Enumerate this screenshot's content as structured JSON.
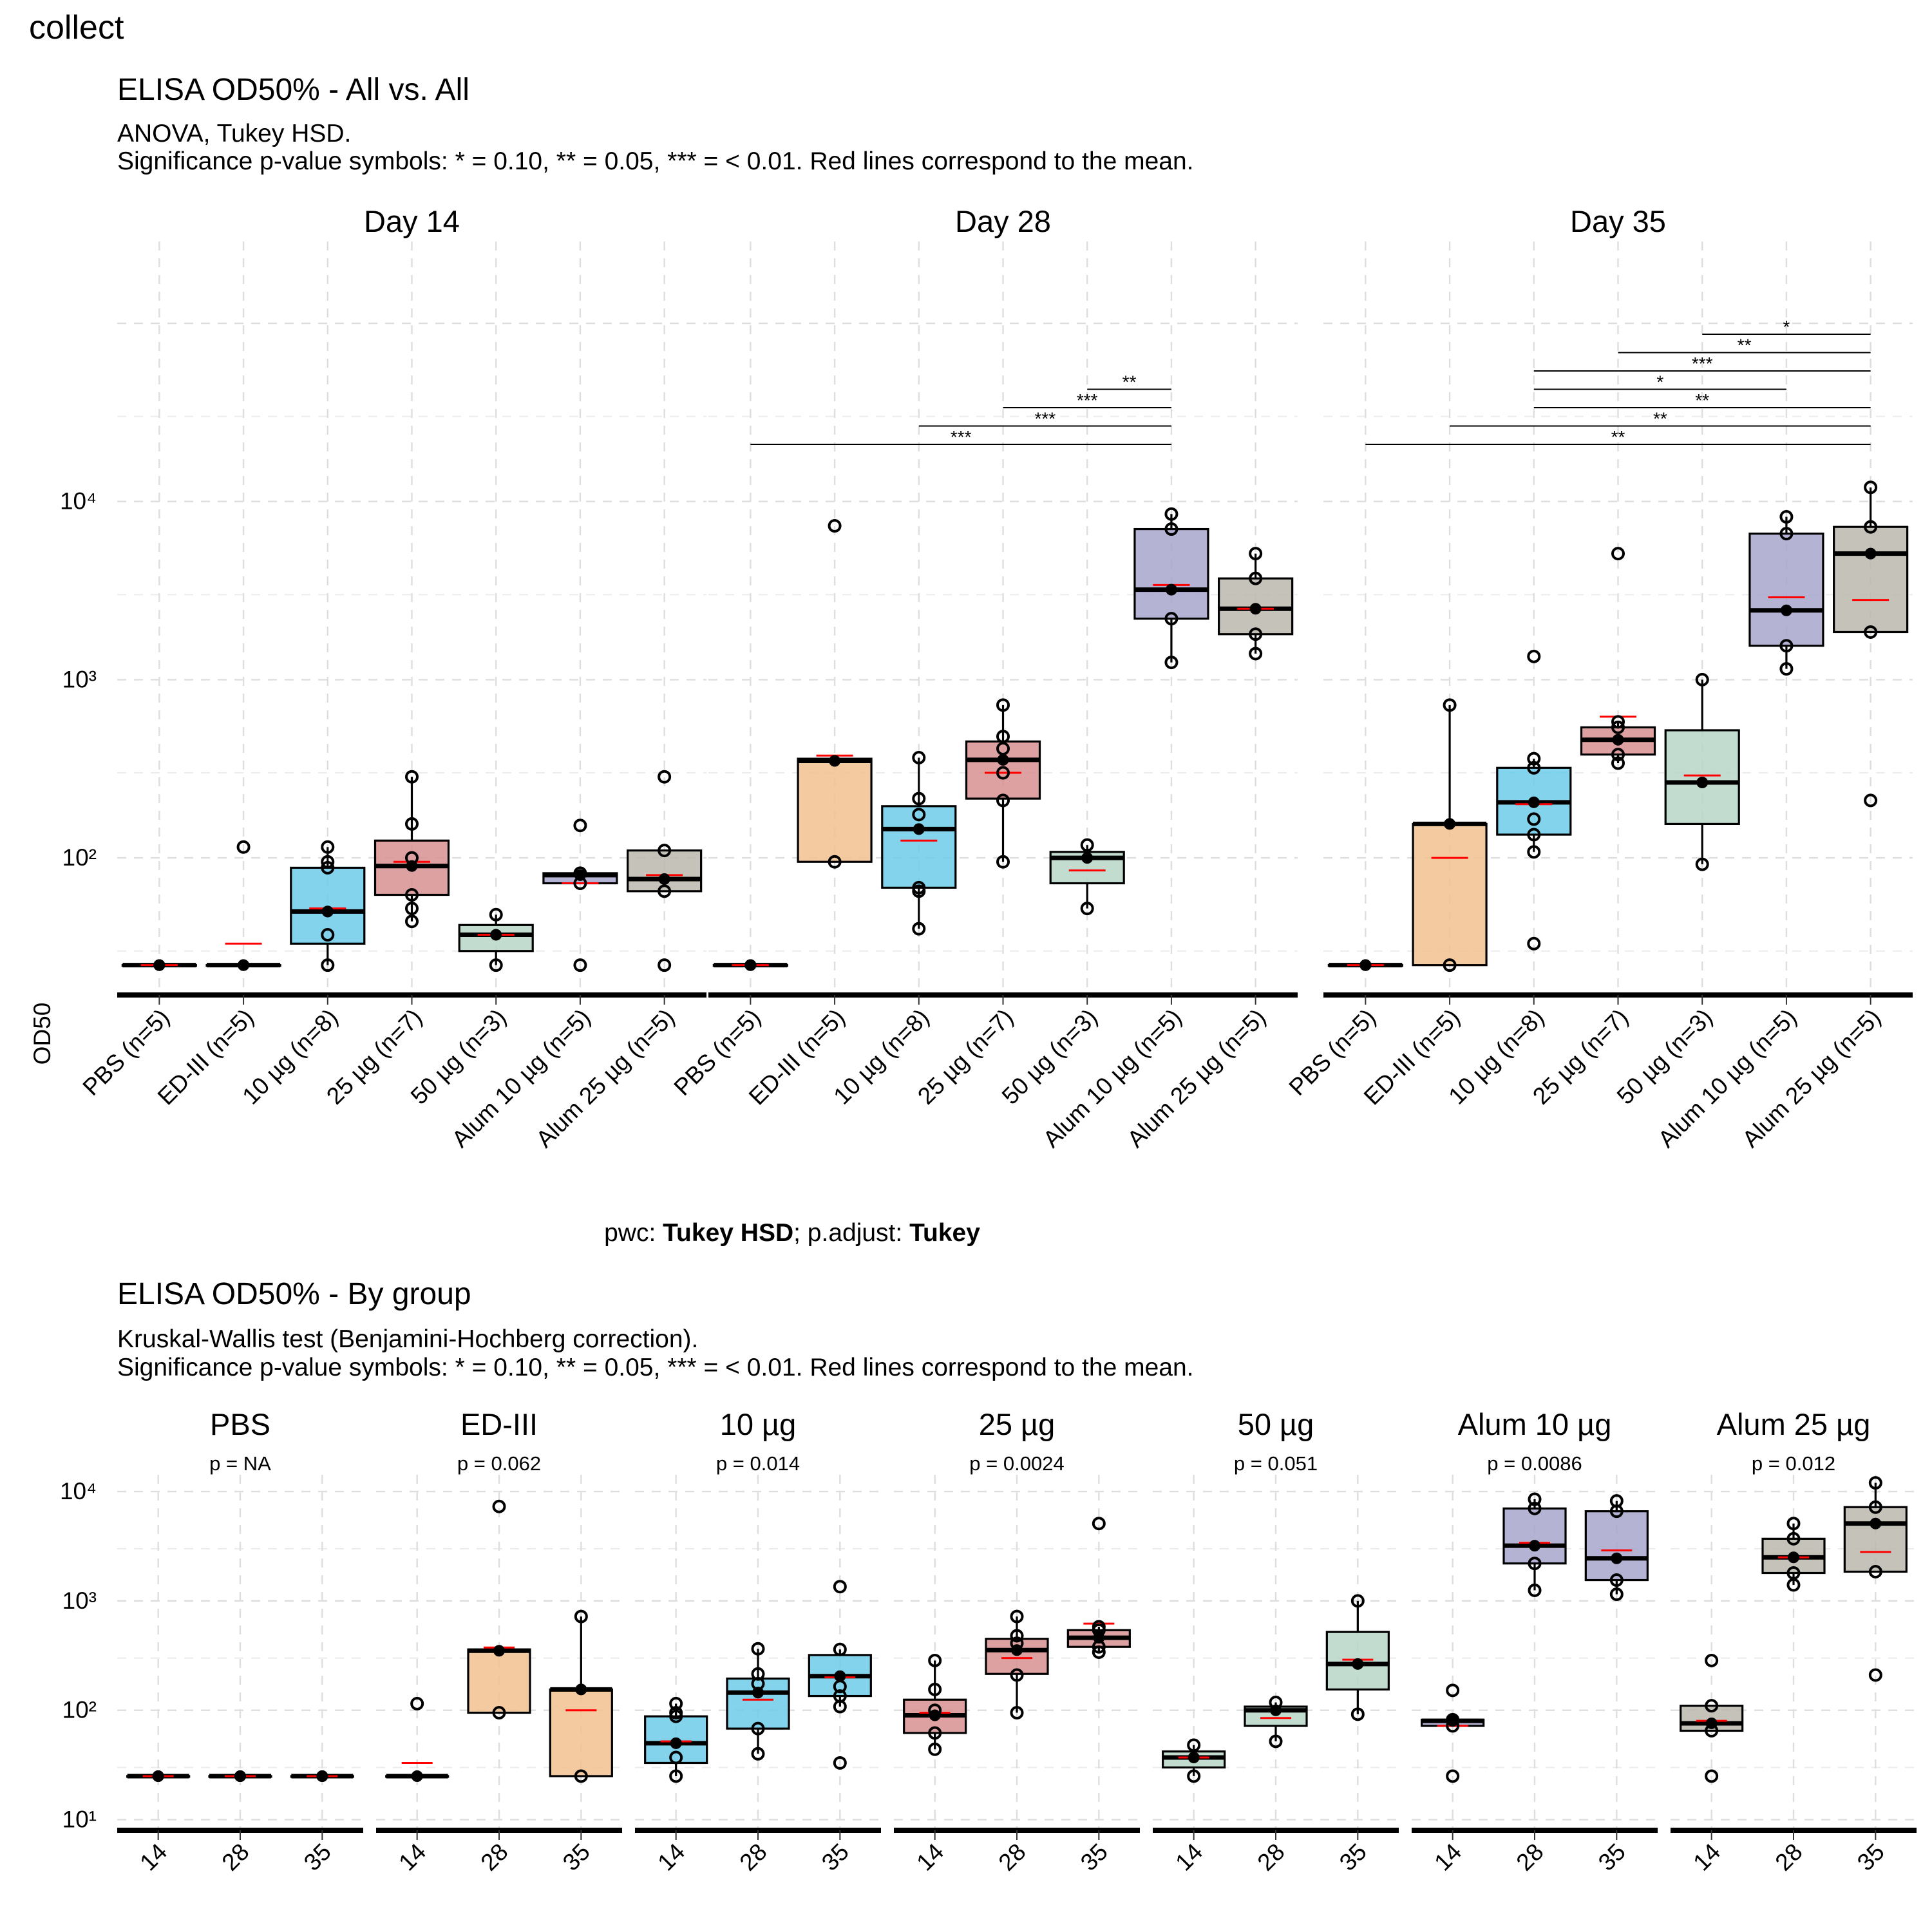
{
  "page_title": "collect",
  "colors": {
    "PBS": "#f8766d",
    "ED-III": "#f2c28f",
    "10 µg": "#6ccbe8",
    "25 µg": "#d89090",
    "50 µg": "#b8d6c8",
    "Alum 10 µg": "#a8a6cc",
    "Alum 25 µg": "#bab7ad"
  },
  "top": {
    "title": "ELISA OD50% - All vs. All",
    "subtitle1": "ANOVA, Tukey HSD.",
    "subtitle2": "Significance p-value symbols: * = 0.10, ** = 0.05, *** = < 0.01. Red lines correspond to the mean.",
    "ylabel": "OD50",
    "caption_pre": "pwc: ",
    "caption_b1": "Tukey HSD",
    "caption_mid": "; p.adjust: ",
    "caption_b2": "Tukey"
  },
  "bottom": {
    "title": "ELISA OD50% - By group",
    "subtitle1": "Kruskal-Wallis test (Benjamini-Hochberg correction).",
    "subtitle2": "Significance p-value symbols: * = 0.10, ** = 0.05, *** = < 0.01. Red lines correspond to the mean."
  },
  "chart_data": [
    {
      "type": "box",
      "title": "ELISA OD50% - All vs. All",
      "subtitle": "ANOVA, Tukey HSD. Significance p-value symbols: * = 0.10, ** = 0.05, *** = < 0.01. Red lines correspond to the mean.",
      "ylabel": "OD50",
      "yscale": "log10",
      "ylim": [
        17,
        300000
      ],
      "yticks": [
        100,
        1000,
        10000
      ],
      "ytick_labels": [
        "10²",
        "10³",
        "10⁴"
      ],
      "caption": "pwc: Tukey HSD; p.adjust: Tukey",
      "categories": [
        "PBS (n=5)",
        "ED-III (n=5)",
        "10 µg (n=8)",
        "25 µg (n=7)",
        "50 µg (n=3)",
        "Alum 10 µg (n=5)",
        "Alum 25 µg (n=5)"
      ],
      "groups": [
        "PBS",
        "ED-III",
        "10 µg",
        "25 µg",
        "50 µg",
        "Alum 10 µg",
        "Alum 25 µg"
      ],
      "panels": [
        {
          "strip": "Day  14",
          "boxes": [
            {
              "q1": 25,
              "med": 25,
              "q3": 25,
              "lo": 25,
              "hi": 25,
              "mean": 25,
              "points": [
                25,
                25,
                25,
                25,
                25
              ]
            },
            {
              "q1": 25,
              "med": 25,
              "q3": 25,
              "lo": 25,
              "hi": 25,
              "mean": 33,
              "points": [
                25,
                25,
                25,
                25,
                115
              ],
              "outliers": [
                115
              ]
            },
            {
              "q1": 33,
              "med": 50,
              "q3": 88,
              "lo": 25,
              "hi": 115,
              "mean": 52,
              "points": [
                25,
                37,
                50,
                50,
                88,
                95,
                115
              ]
            },
            {
              "q1": 62,
              "med": 90,
              "q3": 125,
              "lo": 44,
              "hi": 285,
              "mean": 95,
              "points": [
                44,
                52,
                62,
                90,
                100,
                155,
                285
              ]
            },
            {
              "q1": 30,
              "med": 37,
              "q3": 42,
              "lo": 25,
              "hi": 48,
              "mean": 37,
              "points": [
                25,
                37,
                48
              ]
            },
            {
              "q1": 72,
              "med": 80,
              "q3": 82,
              "lo": 72,
              "hi": 82,
              "mean": 72,
              "points": [
                25,
                72,
                80,
                82,
                152
              ],
              "outliers": [
                25,
                152
              ]
            },
            {
              "q1": 65,
              "med": 76,
              "q3": 110,
              "lo": 65,
              "hi": 110,
              "mean": 80,
              "points": [
                25,
                65,
                76,
                110,
                285
              ],
              "outliers": [
                25,
                285
              ]
            }
          ],
          "brackets": []
        },
        {
          "strip": "Day  28",
          "boxes": [
            {
              "q1": 25,
              "med": 25,
              "q3": 25,
              "lo": 25,
              "hi": 25,
              "mean": 25,
              "points": [
                25,
                25,
                25,
                25,
                25
              ]
            },
            {
              "q1": 95,
              "med": 350,
              "q3": 360,
              "lo": 95,
              "hi": 360,
              "mean": 375,
              "points": [
                95,
                350,
                7300
              ],
              "outliers": [
                7300
              ]
            },
            {
              "q1": 68,
              "med": 145,
              "q3": 195,
              "lo": 40,
              "hi": 365,
              "mean": 125,
              "points": [
                40,
                65,
                68,
                145,
                175,
                215,
                365
              ]
            },
            {
              "q1": 215,
              "med": 355,
              "q3": 450,
              "lo": 95,
              "hi": 720,
              "mean": 300,
              "points": [
                95,
                210,
                300,
                355,
                410,
                480,
                720
              ]
            },
            {
              "q1": 72,
              "med": 100,
              "q3": 108,
              "lo": 52,
              "hi": 118,
              "mean": 85,
              "points": [
                52,
                100,
                118
              ]
            },
            {
              "q1": 2200,
              "med": 3200,
              "q3": 7000,
              "lo": 1250,
              "hi": 8500,
              "mean": 3400,
              "points": [
                1250,
                2200,
                3200,
                7000,
                8500
              ]
            },
            {
              "q1": 1800,
              "med": 2500,
              "q3": 3700,
              "lo": 1400,
              "hi": 5100,
              "mean": 2500,
              "points": [
                1400,
                1800,
                2500,
                3700,
                5100
              ]
            }
          ],
          "brackets": [
            {
              "from": 0,
              "to": 5,
              "label": "***"
            },
            {
              "from": 2,
              "to": 5,
              "label": "***"
            },
            {
              "from": 3,
              "to": 5,
              "label": "***"
            },
            {
              "from": 4,
              "to": 5,
              "label": "**"
            }
          ]
        },
        {
          "strip": "Day  35",
          "boxes": [
            {
              "q1": 25,
              "med": 25,
              "q3": 25,
              "lo": 25,
              "hi": 25,
              "mean": 25,
              "points": [
                25,
                25,
                25,
                25,
                25
              ]
            },
            {
              "q1": 25,
              "med": 155,
              "q3": 155,
              "lo": 25,
              "hi": 720,
              "mean": 100,
              "points": [
                25,
                155,
                720
              ]
            },
            {
              "q1": 135,
              "med": 205,
              "q3": 320,
              "lo": 108,
              "hi": 360,
              "mean": 200,
              "points": [
                33,
                108,
                135,
                165,
                205,
                320,
                360,
                1350
              ],
              "outliers": [
                33,
                1350
              ]
            },
            {
              "q1": 380,
              "med": 460,
              "q3": 540,
              "lo": 340,
              "hi": 580,
              "mean": 620,
              "points": [
                340,
                380,
                460,
                540,
                580,
                5100
              ],
              "outliers": [
                5100
              ]
            },
            {
              "q1": 155,
              "med": 265,
              "q3": 520,
              "lo": 92,
              "hi": 1000,
              "mean": 290,
              "points": [
                92,
                265,
                1000
              ]
            },
            {
              "q1": 1550,
              "med": 2450,
              "q3": 6600,
              "lo": 1150,
              "hi": 8200,
              "mean": 2900,
              "points": [
                1150,
                1550,
                2450,
                6600,
                8200
              ]
            },
            {
              "q1": 1850,
              "med": 5100,
              "q3": 7200,
              "lo": 1850,
              "hi": 12000,
              "mean": 2800,
              "points": [
                210,
                1850,
                5100,
                7200,
                12000
              ],
              "outliers": [
                210
              ]
            }
          ],
          "brackets": [
            {
              "from": 0,
              "to": 6,
              "label": "**"
            },
            {
              "from": 1,
              "to": 6,
              "label": "**"
            },
            {
              "from": 2,
              "to": 6,
              "label": "**"
            },
            {
              "from": 2,
              "to": 5,
              "label": "*"
            },
            {
              "from": 2,
              "to": 6,
              "label": "***"
            },
            {
              "from": 3,
              "to": 6,
              "label": "**"
            },
            {
              "from": 4,
              "to": 6,
              "label": "*"
            }
          ]
        }
      ]
    },
    {
      "type": "box",
      "title": "ELISA OD50% - By group",
      "subtitle": "Kruskal-Wallis test (Benjamini-Hochberg correction). Significance p-value symbols: * = 0.10, ** = 0.05, *** = < 0.01. Red lines correspond to the mean.",
      "yscale": "log10",
      "ylim": [
        8,
        30000
      ],
      "yticks": [
        10,
        100,
        1000,
        10000
      ],
      "ytick_labels": [
        "10¹",
        "10²",
        "10³",
        "10⁴"
      ],
      "categories": [
        "14",
        "28",
        "35"
      ],
      "panels": [
        {
          "strip": "PBS",
          "p": "p = NA",
          "group": "PBS",
          "boxes": [
            {
              "q1": 25,
              "med": 25,
              "q3": 25,
              "lo": 25,
              "hi": 25,
              "mean": 25,
              "points": [
                25,
                25,
                25
              ]
            },
            {
              "q1": 25,
              "med": 25,
              "q3": 25,
              "lo": 25,
              "hi": 25,
              "mean": 25,
              "points": [
                25,
                25,
                25
              ]
            },
            {
              "q1": 25,
              "med": 25,
              "q3": 25,
              "lo": 25,
              "hi": 25,
              "mean": 25,
              "points": [
                25,
                25,
                25
              ]
            }
          ]
        },
        {
          "strip": "ED-III",
          "p": "p = 0.062",
          "group": "ED-III",
          "boxes": [
            {
              "q1": 25,
              "med": 25,
              "q3": 25,
              "lo": 25,
              "hi": 25,
              "mean": 33,
              "points": [
                25,
                115
              ],
              "outliers": [
                115
              ]
            },
            {
              "q1": 95,
              "med": 350,
              "q3": 360,
              "lo": 95,
              "hi": 360,
              "mean": 375,
              "points": [
                95,
                350,
                7300
              ],
              "outliers": [
                7300
              ]
            },
            {
              "q1": 25,
              "med": 155,
              "q3": 155,
              "lo": 25,
              "hi": 720,
              "mean": 100,
              "points": [
                25,
                155,
                720
              ]
            }
          ]
        },
        {
          "strip": "10 µg",
          "p": "p = 0.014",
          "group": "10 µg",
          "boxes": [
            {
              "q1": 33,
              "med": 50,
              "q3": 88,
              "lo": 25,
              "hi": 115,
              "mean": 52,
              "points": [
                25,
                37,
                50,
                88,
                95,
                115
              ]
            },
            {
              "q1": 68,
              "med": 145,
              "q3": 195,
              "lo": 40,
              "hi": 365,
              "mean": 125,
              "points": [
                40,
                68,
                145,
                175,
                215,
                365
              ]
            },
            {
              "q1": 135,
              "med": 205,
              "q3": 320,
              "lo": 108,
              "hi": 360,
              "mean": 200,
              "points": [
                33,
                108,
                135,
                165,
                205,
                360,
                1350
              ],
              "outliers": [
                33,
                1350
              ]
            }
          ]
        },
        {
          "strip": "25 µg",
          "p": "p = 0.0024",
          "group": "25 µg",
          "boxes": [
            {
              "q1": 62,
              "med": 90,
              "q3": 125,
              "lo": 44,
              "hi": 285,
              "mean": 95,
              "points": [
                44,
                62,
                90,
                100,
                155,
                285
              ]
            },
            {
              "q1": 215,
              "med": 355,
              "q3": 450,
              "lo": 95,
              "hi": 720,
              "mean": 300,
              "points": [
                95,
                210,
                355,
                410,
                480,
                720
              ]
            },
            {
              "q1": 380,
              "med": 460,
              "q3": 540,
              "lo": 340,
              "hi": 580,
              "mean": 620,
              "points": [
                340,
                380,
                460,
                540,
                580,
                5100
              ],
              "outliers": [
                5100
              ]
            }
          ]
        },
        {
          "strip": "50 µg",
          "p": "p = 0.051",
          "group": "50 µg",
          "boxes": [
            {
              "q1": 30,
              "med": 37,
              "q3": 42,
              "lo": 25,
              "hi": 48,
              "mean": 37,
              "points": [
                25,
                37,
                48
              ]
            },
            {
              "q1": 72,
              "med": 100,
              "q3": 108,
              "lo": 52,
              "hi": 118,
              "mean": 85,
              "points": [
                52,
                100,
                118
              ]
            },
            {
              "q1": 155,
              "med": 265,
              "q3": 520,
              "lo": 92,
              "hi": 1000,
              "mean": 290,
              "points": [
                92,
                265,
                1000
              ]
            }
          ]
        },
        {
          "strip": "Alum 10 µg",
          "p": "p = 0.0086",
          "group": "Alum 10 µg",
          "boxes": [
            {
              "q1": 72,
              "med": 80,
              "q3": 82,
              "lo": 72,
              "hi": 82,
              "mean": 72,
              "points": [
                25,
                72,
                80,
                82,
                152
              ],
              "outliers": [
                25,
                152
              ]
            },
            {
              "q1": 2200,
              "med": 3200,
              "q3": 7000,
              "lo": 1250,
              "hi": 8500,
              "mean": 3400,
              "points": [
                1250,
                2200,
                3200,
                7000,
                8500
              ]
            },
            {
              "q1": 1550,
              "med": 2450,
              "q3": 6600,
              "lo": 1150,
              "hi": 8200,
              "mean": 2900,
              "points": [
                1150,
                1550,
                2450,
                6600,
                8200
              ]
            }
          ]
        },
        {
          "strip": "Alum 25 µg",
          "p": "p = 0.012",
          "group": "Alum 25 µg",
          "boxes": [
            {
              "q1": 65,
              "med": 76,
              "q3": 110,
              "lo": 65,
              "hi": 110,
              "mean": 80,
              "points": [
                25,
                65,
                76,
                110,
                285
              ],
              "outliers": [
                25,
                285
              ]
            },
            {
              "q1": 1800,
              "med": 2500,
              "q3": 3700,
              "lo": 1400,
              "hi": 5100,
              "mean": 2500,
              "points": [
                1400,
                1800,
                2500,
                3700,
                5100
              ]
            },
            {
              "q1": 1850,
              "med": 5100,
              "q3": 7200,
              "lo": 1850,
              "hi": 12000,
              "mean": 2800,
              "points": [
                210,
                1850,
                5100,
                7200,
                12000
              ],
              "outliers": [
                210
              ]
            }
          ]
        }
      ]
    }
  ]
}
